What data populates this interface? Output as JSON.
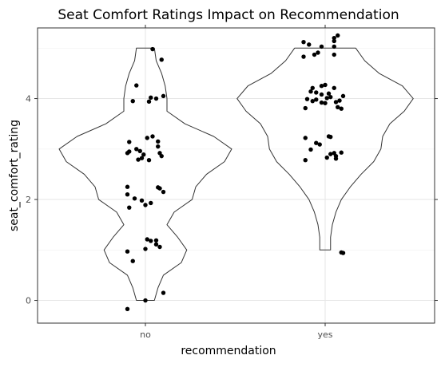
{
  "chart_data": {
    "type": "violin",
    "title": "Seat Comfort Ratings Impact on Recommendation",
    "xlabel": "recommendation",
    "ylabel": "seat_comfort_rating",
    "categories": [
      "no",
      "yes"
    ],
    "ylim": [
      -0.45,
      5.4
    ],
    "yticks": [
      0,
      2,
      4
    ],
    "grid": true,
    "violins": [
      {
        "category": "no",
        "min": 0,
        "max": 5,
        "profile": [
          [
            0,
            0.05
          ],
          [
            0.25,
            0.07
          ],
          [
            0.5,
            0.1
          ],
          [
            0.75,
            0.2
          ],
          [
            1.0,
            0.23
          ],
          [
            1.25,
            0.18
          ],
          [
            1.5,
            0.12
          ],
          [
            1.75,
            0.16
          ],
          [
            2.0,
            0.26
          ],
          [
            2.25,
            0.28
          ],
          [
            2.5,
            0.34
          ],
          [
            2.75,
            0.44
          ],
          [
            3.0,
            0.48
          ],
          [
            3.25,
            0.38
          ],
          [
            3.5,
            0.22
          ],
          [
            3.75,
            0.12
          ],
          [
            4.0,
            0.12
          ],
          [
            4.25,
            0.11
          ],
          [
            4.5,
            0.09
          ],
          [
            4.75,
            0.06
          ],
          [
            5.0,
            0.05
          ]
        ]
      },
      {
        "category": "yes",
        "min": 1,
        "max": 5,
        "profile": [
          [
            1.0,
            0.03
          ],
          [
            1.25,
            0.03
          ],
          [
            1.5,
            0.04
          ],
          [
            1.75,
            0.06
          ],
          [
            2.0,
            0.09
          ],
          [
            2.25,
            0.14
          ],
          [
            2.5,
            0.2
          ],
          [
            2.75,
            0.27
          ],
          [
            3.0,
            0.31
          ],
          [
            3.25,
            0.32
          ],
          [
            3.5,
            0.36
          ],
          [
            3.75,
            0.44
          ],
          [
            4.0,
            0.49
          ],
          [
            4.25,
            0.43
          ],
          [
            4.5,
            0.3
          ],
          [
            4.75,
            0.22
          ],
          [
            5.0,
            0.17
          ]
        ]
      }
    ],
    "points": [
      {
        "x": 0.04,
        "y": 4.98
      },
      {
        "x": 0.09,
        "y": 4.77
      },
      {
        "x": -0.05,
        "y": 4.26
      },
      {
        "x": 0.03,
        "y": 4.02
      },
      {
        "x": 0.1,
        "y": 4.05
      },
      {
        "x": -0.07,
        "y": 3.95
      },
      {
        "x": 0.02,
        "y": 3.94
      },
      {
        "x": 0.06,
        "y": 4.0
      },
      {
        "x": 0.04,
        "y": 3.25
      },
      {
        "x": 0.01,
        "y": 3.22
      },
      {
        "x": -0.09,
        "y": 3.14
      },
      {
        "x": 0.07,
        "y": 3.15
      },
      {
        "x": 0.07,
        "y": 3.05
      },
      {
        "x": -0.05,
        "y": 3.0
      },
      {
        "x": -0.03,
        "y": 2.96
      },
      {
        "x": -0.09,
        "y": 2.95
      },
      {
        "x": -0.1,
        "y": 2.92
      },
      {
        "x": 0.08,
        "y": 2.92
      },
      {
        "x": -0.01,
        "y": 2.89
      },
      {
        "x": 0.09,
        "y": 2.86
      },
      {
        "x": -0.02,
        "y": 2.82
      },
      {
        "x": -0.04,
        "y": 2.79
      },
      {
        "x": 0.02,
        "y": 2.78
      },
      {
        "x": -0.1,
        "y": 2.25
      },
      {
        "x": 0.07,
        "y": 2.24
      },
      {
        "x": 0.08,
        "y": 2.22
      },
      {
        "x": 0.1,
        "y": 2.15
      },
      {
        "x": -0.1,
        "y": 2.1
      },
      {
        "x": -0.06,
        "y": 2.02
      },
      {
        "x": -0.02,
        "y": 1.98
      },
      {
        "x": 0.03,
        "y": 1.93
      },
      {
        "x": 0.0,
        "y": 1.89
      },
      {
        "x": -0.09,
        "y": 1.84
      },
      {
        "x": 0.01,
        "y": 1.21
      },
      {
        "x": 0.03,
        "y": 1.18
      },
      {
        "x": 0.06,
        "y": 1.19
      },
      {
        "x": 0.06,
        "y": 1.11
      },
      {
        "x": 0.08,
        "y": 1.06
      },
      {
        "x": 0.0,
        "y": 1.02
      },
      {
        "x": -0.1,
        "y": 0.97
      },
      {
        "x": -0.07,
        "y": 0.78
      },
      {
        "x": 0.1,
        "y": 0.15
      },
      {
        "x": 0.0,
        "y": 0.0
      },
      {
        "x": -0.1,
        "y": -0.17
      },
      {
        "x": 0.88,
        "y": 5.12
      },
      {
        "x": 0.91,
        "y": 5.07
      },
      {
        "x": 0.98,
        "y": 5.03
      },
      {
        "x": 1.05,
        "y": 5.2
      },
      {
        "x": 1.07,
        "y": 5.25
      },
      {
        "x": 1.05,
        "y": 5.14
      },
      {
        "x": 1.05,
        "y": 5.03
      },
      {
        "x": 0.94,
        "y": 4.87
      },
      {
        "x": 0.96,
        "y": 4.91
      },
      {
        "x": 0.88,
        "y": 4.83
      },
      {
        "x": 1.05,
        "y": 4.87
      },
      {
        "x": 0.98,
        "y": 4.25
      },
      {
        "x": 1.0,
        "y": 4.27
      },
      {
        "x": 1.05,
        "y": 4.21
      },
      {
        "x": 0.93,
        "y": 4.21
      },
      {
        "x": 0.92,
        "y": 4.14
      },
      {
        "x": 0.95,
        "y": 4.12
      },
      {
        "x": 1.02,
        "y": 4.1
      },
      {
        "x": 0.98,
        "y": 4.08
      },
      {
        "x": 1.1,
        "y": 4.05
      },
      {
        "x": 1.03,
        "y": 4.03
      },
      {
        "x": 1.01,
        "y": 4.01
      },
      {
        "x": 0.9,
        "y": 3.99
      },
      {
        "x": 0.95,
        "y": 3.98
      },
      {
        "x": 1.08,
        "y": 3.96
      },
      {
        "x": 0.93,
        "y": 3.95
      },
      {
        "x": 1.06,
        "y": 3.93
      },
      {
        "x": 0.98,
        "y": 3.92
      },
      {
        "x": 1.0,
        "y": 3.91
      },
      {
        "x": 1.07,
        "y": 3.83
      },
      {
        "x": 0.89,
        "y": 3.81
      },
      {
        "x": 1.09,
        "y": 3.8
      },
      {
        "x": 1.02,
        "y": 3.25
      },
      {
        "x": 1.03,
        "y": 3.24
      },
      {
        "x": 0.89,
        "y": 3.22
      },
      {
        "x": 0.95,
        "y": 3.12
      },
      {
        "x": 0.97,
        "y": 3.09
      },
      {
        "x": 0.92,
        "y": 2.99
      },
      {
        "x": 1.09,
        "y": 2.93
      },
      {
        "x": 1.05,
        "y": 2.92
      },
      {
        "x": 1.03,
        "y": 2.9
      },
      {
        "x": 1.06,
        "y": 2.86
      },
      {
        "x": 1.01,
        "y": 2.83
      },
      {
        "x": 1.06,
        "y": 2.81
      },
      {
        "x": 0.89,
        "y": 2.78
      },
      {
        "x": 1.09,
        "y": 0.95
      },
      {
        "x": 1.1,
        "y": 0.94
      }
    ]
  }
}
